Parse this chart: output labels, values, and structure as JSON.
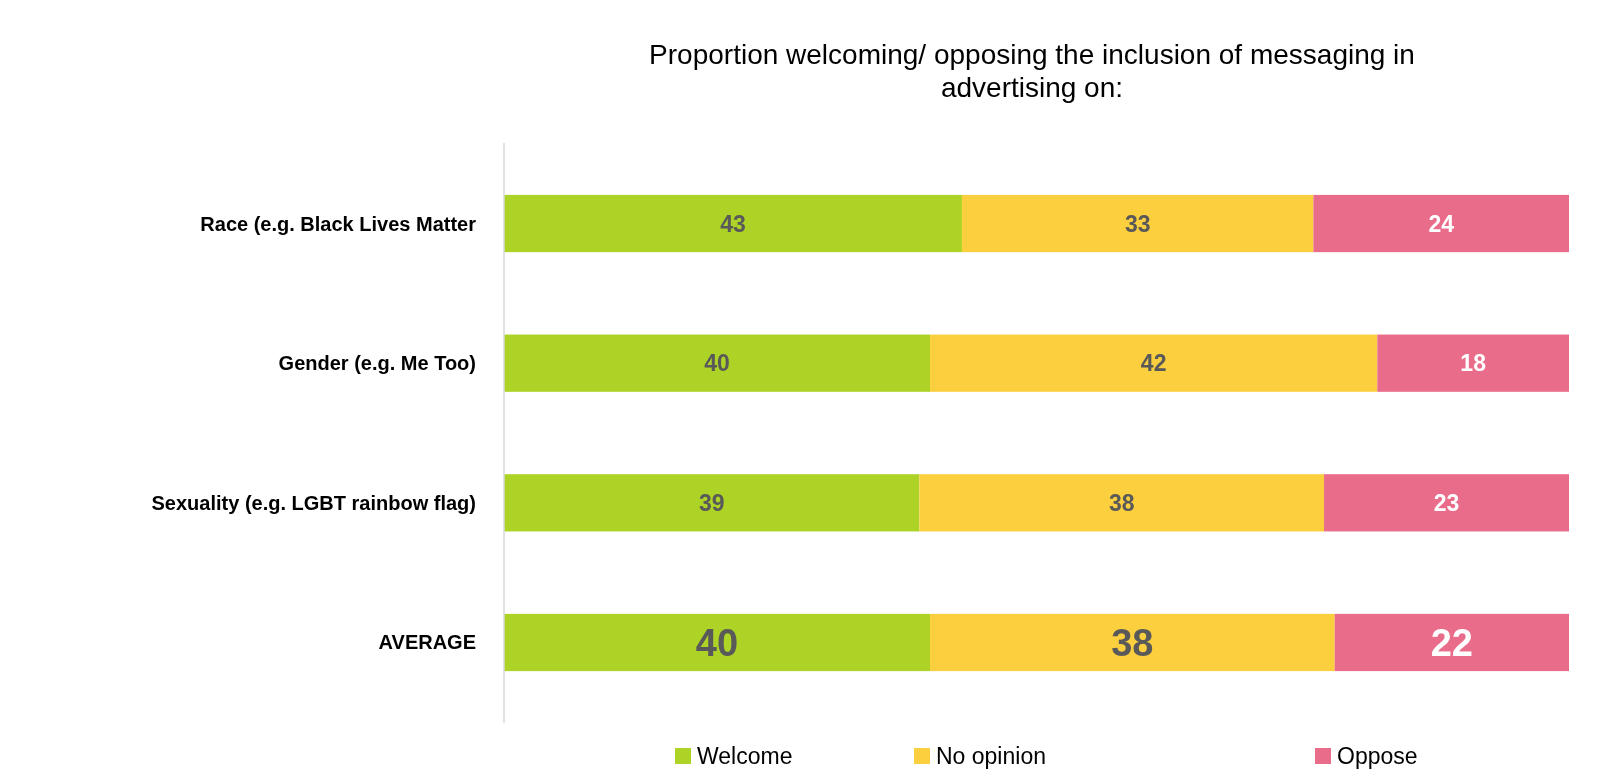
{
  "chart_data": {
    "type": "bar",
    "orientation": "horizontal",
    "stacked": true,
    "title": "Proportion welcoming/ opposing the inclusion of messaging in advertising on:",
    "categories": [
      "Race (e.g. Black Lives Matter",
      "Gender (e.g. Me Too)",
      "Sexuality (e.g. LGBT rainbow flag)",
      "AVERAGE"
    ],
    "series": [
      {
        "name": "Welcome",
        "color": "#add326",
        "values": [
          43,
          40,
          39,
          40
        ]
      },
      {
        "name": "No opinion",
        "color": "#fccf3e",
        "values": [
          33,
          42,
          38,
          38
        ]
      },
      {
        "name": "Oppose",
        "color": "#e96c8a",
        "values": [
          24,
          18,
          23,
          22
        ]
      }
    ],
    "data_labels": true,
    "legend": "bottom"
  }
}
